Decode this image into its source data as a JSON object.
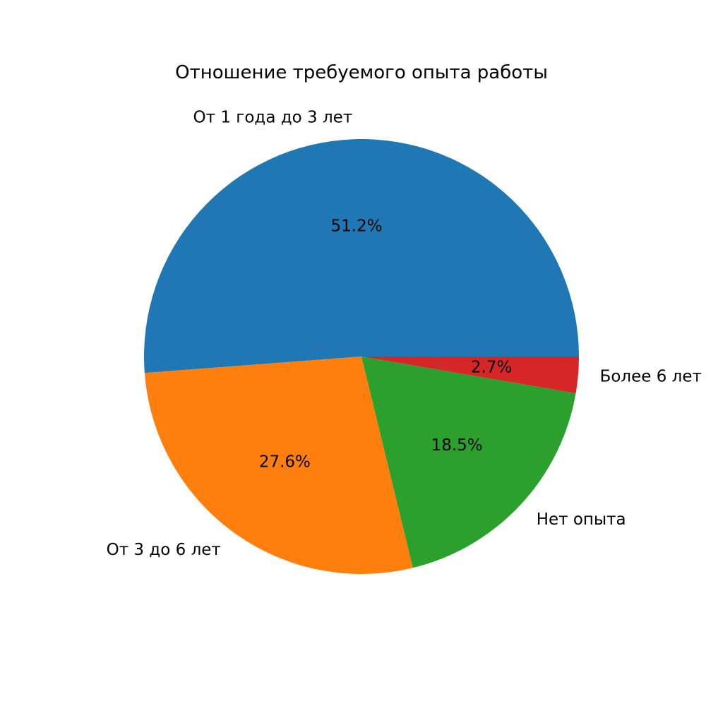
{
  "chart_data": {
    "type": "pie",
    "title": "Отношение требуемого опыта работы",
    "categories": [
      "От 1 года до 3 лет",
      "От 3 до 6 лет",
      "Нет опыта",
      "Более 6 лет"
    ],
    "values": [
      51.2,
      27.6,
      18.5,
      2.7
    ],
    "percent_labels": [
      "51.2%",
      "27.6%",
      "18.5%",
      "2.7%"
    ],
    "colors": [
      "#1f77b4",
      "#ff7f0e",
      "#2ca02c",
      "#d62728"
    ],
    "start_angle_deg": 0,
    "direction": "counterclockwise",
    "legend": "none"
  }
}
